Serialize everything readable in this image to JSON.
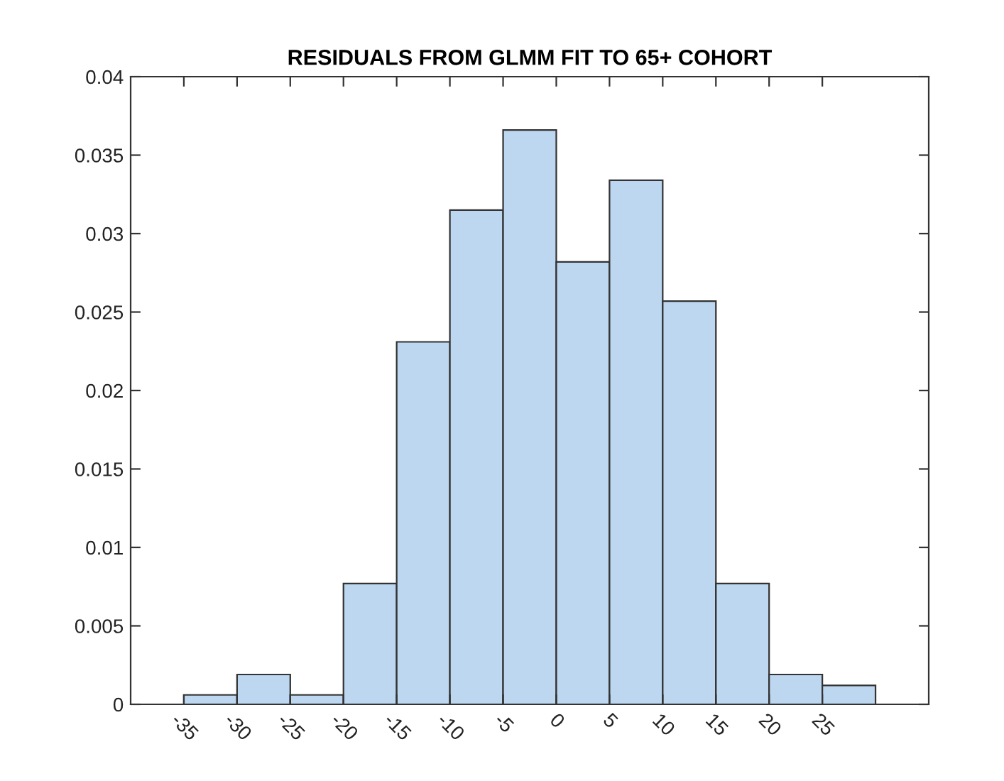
{
  "chart_data": {
    "type": "histogram",
    "title": "RESIDUALS FROM GLMM FIT TO 65+ COHORT",
    "bins": [
      -35,
      -30,
      -25,
      -20,
      -15,
      -10,
      -5,
      0,
      5,
      10,
      15,
      20,
      25,
      30
    ],
    "values": [
      0.0006,
      0.0019,
      0.0006,
      0.0077,
      0.0231,
      0.0315,
      0.0366,
      0.0282,
      0.0334,
      0.0257,
      0.0077,
      0.0019,
      0.0012
    ],
    "color": "#bdd7f0",
    "xlim": [
      -40,
      35
    ],
    "xticks": [
      -35,
      -30,
      -25,
      -20,
      -15,
      -10,
      -5,
      0,
      5,
      10,
      15,
      20,
      25
    ],
    "ylim": [
      0,
      0.04
    ],
    "yticks": [
      0,
      0.005,
      0.01,
      0.015,
      0.02,
      0.025,
      0.03,
      0.035,
      0.04
    ],
    "grid": false
  }
}
